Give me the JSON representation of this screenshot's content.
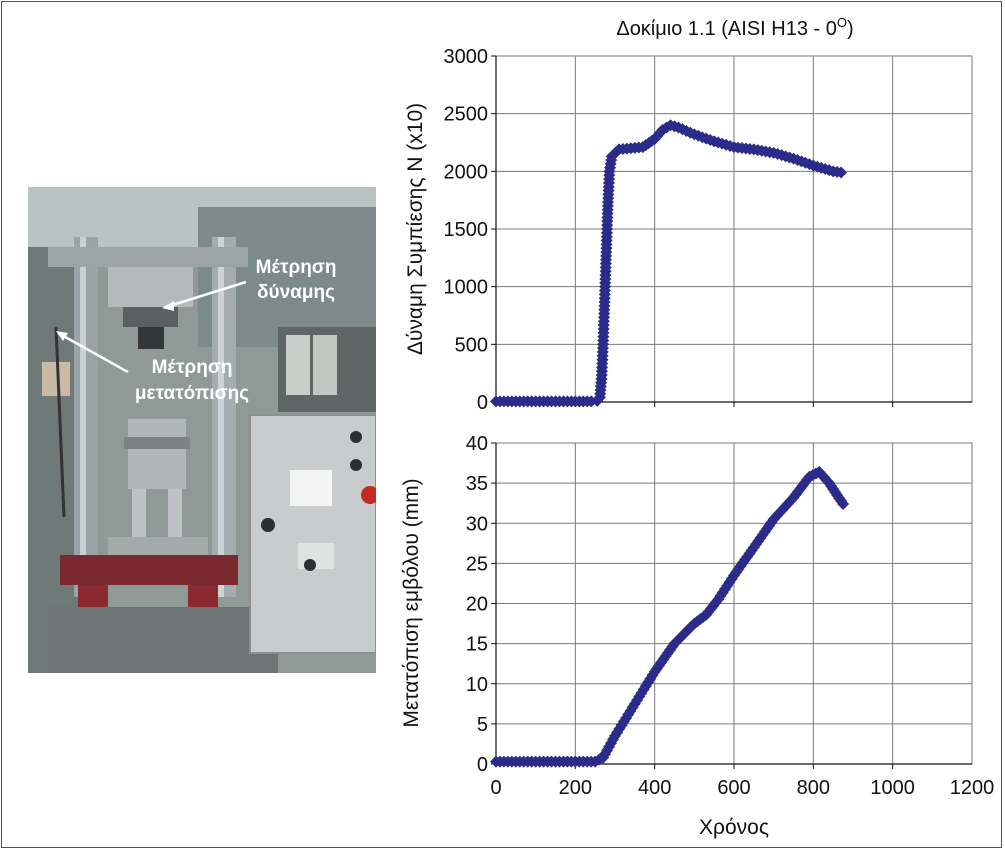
{
  "figure": {
    "title": "Δοκίμιο 1.1 (AISI H13 - 0",
    "title_degree": "O",
    "title_close": ")"
  },
  "photo": {
    "callouts": [
      {
        "id": "force",
        "lines": [
          "Μέτρηση",
          "δύναμης"
        ]
      },
      {
        "id": "displacement",
        "lines": [
          "Μέτρηση",
          "μετατόπισης"
        ]
      }
    ]
  },
  "chart_data": [
    {
      "type": "scatter",
      "title": "Δοκίμιο 1.1 (AISI H13 - 0°)",
      "xlabel": "",
      "ylabel": "Δύναμη Συμπίεσης Ν (x10)",
      "xlim": [
        0,
        1200
      ],
      "ylim": [
        0,
        3000
      ],
      "xticks": [],
      "yticks": [
        0,
        500,
        1000,
        1500,
        2000,
        2500,
        3000
      ],
      "grid": true,
      "marker_color": "#2b2b8a",
      "points": [
        [
          0,
          5
        ],
        [
          30,
          5
        ],
        [
          60,
          5
        ],
        [
          90,
          5
        ],
        [
          120,
          5
        ],
        [
          150,
          5
        ],
        [
          180,
          5
        ],
        [
          210,
          5
        ],
        [
          240,
          5
        ],
        [
          255,
          10
        ],
        [
          262,
          40
        ],
        [
          266,
          200
        ],
        [
          270,
          500
        ],
        [
          274,
          900
        ],
        [
          278,
          1300
        ],
        [
          282,
          1700
        ],
        [
          286,
          2000
        ],
        [
          292,
          2130
        ],
        [
          310,
          2190
        ],
        [
          340,
          2200
        ],
        [
          370,
          2210
        ],
        [
          400,
          2280
        ],
        [
          420,
          2360
        ],
        [
          440,
          2400
        ],
        [
          460,
          2380
        ],
        [
          500,
          2320
        ],
        [
          550,
          2260
        ],
        [
          600,
          2210
        ],
        [
          650,
          2190
        ],
        [
          700,
          2160
        ],
        [
          750,
          2110
        ],
        [
          800,
          2050
        ],
        [
          850,
          2000
        ],
        [
          870,
          1990
        ]
      ]
    },
    {
      "type": "scatter",
      "xlabel": "Χρόνος",
      "ylabel": "Μετατόπιση εμβόλου (mm)",
      "xlim": [
        0,
        1200
      ],
      "ylim": [
        0,
        40
      ],
      "xticks": [
        0,
        200,
        400,
        600,
        800,
        1000,
        1200
      ],
      "yticks": [
        0,
        5,
        10,
        15,
        20,
        25,
        30,
        35,
        40
      ],
      "grid": true,
      "marker_color": "#2b2b8a",
      "points": [
        [
          0,
          0.3
        ],
        [
          50,
          0.3
        ],
        [
          100,
          0.3
        ],
        [
          150,
          0.3
        ],
        [
          200,
          0.3
        ],
        [
          250,
          0.3
        ],
        [
          270,
          0.8
        ],
        [
          300,
          3.5
        ],
        [
          350,
          7.5
        ],
        [
          400,
          11.5
        ],
        [
          450,
          15
        ],
        [
          500,
          17.5
        ],
        [
          530,
          18.6
        ],
        [
          560,
          20.5
        ],
        [
          600,
          23.5
        ],
        [
          650,
          27
        ],
        [
          700,
          30.5
        ],
        [
          750,
          33.2
        ],
        [
          790,
          35.8
        ],
        [
          815,
          36.4
        ],
        [
          840,
          35
        ],
        [
          860,
          33.5
        ],
        [
          875,
          32.4
        ]
      ]
    }
  ]
}
